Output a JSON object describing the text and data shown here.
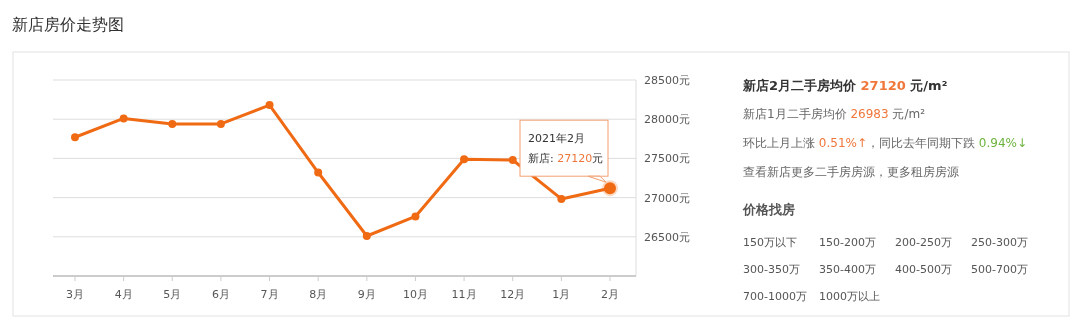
{
  "chart_data": {
    "type": "line",
    "title": "新店房价走势图",
    "categories": [
      "3月",
      "4月",
      "5月",
      "6月",
      "7月",
      "8月",
      "9月",
      "10月",
      "11月",
      "12月",
      "1月",
      "2月"
    ],
    "series": [
      {
        "color": "#f06a14",
        "values": [
          27770,
          28010,
          27940,
          27940,
          28180,
          27320,
          26510,
          26760,
          27490,
          27480,
          26983,
          27120
        ]
      }
    ],
    "ylim": [
      26000,
      28500
    ],
    "yticks": [
      {
        "value": 26500,
        "label": "26500元"
      },
      {
        "value": 27000,
        "label": "27000元"
      },
      {
        "value": 27500,
        "label": "27500元"
      },
      {
        "value": 28000,
        "label": "28000元"
      },
      {
        "value": 28500,
        "label": "28500元"
      }
    ],
    "grid": "y",
    "marker": "circle",
    "line_style": "solid",
    "annotations": [
      "2021年2月",
      {
        "text": "新店:  27120元",
        "x": "2月",
        "y": 27120
      },
      "新店2月二手房均价 27120 元/m²",
      "新店1月二手房均价 26983 元/m²",
      "环比上月上涨 0.51%↑，同比去年同期下跌 0.94%↓",
      "查看新店更多二手房房源，更多租房房源",
      "价格找房",
      "150万以下",
      "150-200万",
      "200-250万",
      "250-300万",
      "300-350万",
      "350-400万",
      "400-500万",
      "500-700万",
      "700-1000万",
      "1000万以上"
    ]
  }
}
